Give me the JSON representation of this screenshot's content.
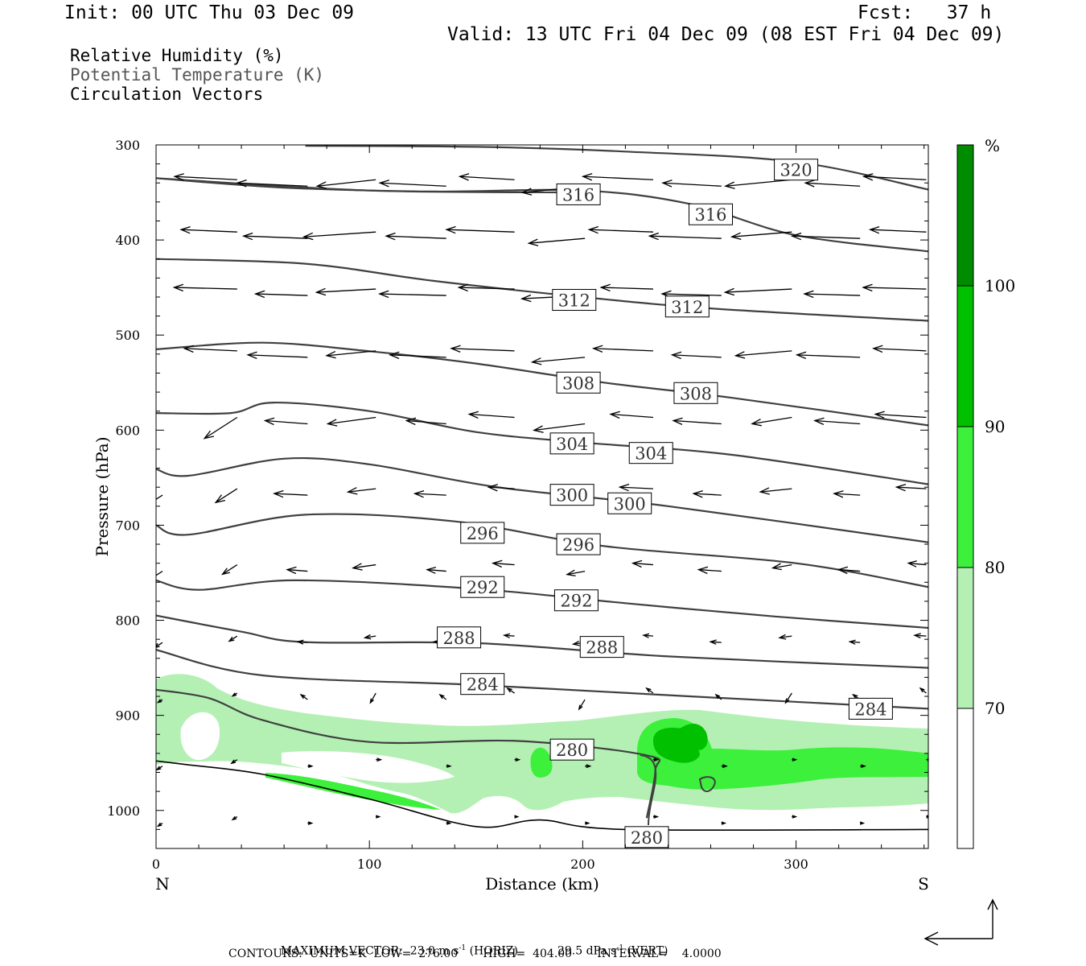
{
  "header": {
    "init": "Init: 00 UTC Thu 03 Dec 09",
    "fcst": "Fcst:   37 h",
    "valid": "Valid: 13 UTC Fri 04 Dec 09 (08 EST Fri 04 Dec 09)"
  },
  "legend": {
    "line1": "Relative Humidity (%)",
    "line2": "Potential Temperature (K)",
    "line3": "Circulation Vectors"
  },
  "footer": {
    "max_vector_label": "MAXIMUM VECTOR:",
    "max_vector_horiz": "23.0 m s",
    "horiz_sup": "-1",
    "horiz_tag": "(HORIZ)",
    "max_vector_vert": "29.5 dPa s",
    "vert_sup": "-1",
    "vert_tag": "(VERT)",
    "contours": "CONTOURS:  UNITS=K  LOW=  276.00       HIGH=  404.00       INTERVAL=    4.0000"
  },
  "colors": {
    "contour": "#404040",
    "rh70": "#b4f0b4",
    "rh80": "#3cf03c",
    "rh90": "#00c000",
    "rh100": "#008c00"
  },
  "chart_data": {
    "type": "cross-section",
    "xlabel": "Distance (km)",
    "ylabel": "Pressure (hPa)",
    "xlim": [
      0,
      362
    ],
    "ylim": [
      1040,
      300
    ],
    "x_ticks": [
      "0",
      "100",
      "200",
      "300"
    ],
    "y_ticks": [
      "300",
      "400",
      "500",
      "600",
      "700",
      "800",
      "900",
      "1000"
    ],
    "x_end_labels": {
      "left": "N",
      "right": "S"
    },
    "colorbar": {
      "unit": "%",
      "levels": [
        "70",
        "80",
        "90",
        "100"
      ]
    },
    "theta_contours": [
      {
        "label": "320",
        "points": [
          [
            70,
            301
          ],
          [
            150,
            302
          ],
          [
            220,
            307
          ],
          [
            300,
            318
          ],
          [
            362,
            347
          ]
        ],
        "label_at": [
          [
            300,
            326
          ]
        ]
      },
      {
        "label": "316",
        "points": [
          [
            0,
            335
          ],
          [
            60,
            345
          ],
          [
            130,
            349
          ],
          [
            200,
            348
          ],
          [
            250,
            362
          ],
          [
            300,
            395
          ],
          [
            362,
            412
          ]
        ],
        "label_at": [
          [
            260,
            373
          ]
        ],
        "note": "first curve"
      },
      {
        "label": "316b",
        "points": [
          [
            0,
            335
          ],
          [
            100,
            348
          ],
          [
            200,
            350
          ]
        ],
        "label_at": [
          [
            198,
            352
          ]
        ],
        "display": "316"
      },
      {
        "label": "312",
        "points": [
          [
            0,
            420
          ],
          [
            70,
            425
          ],
          [
            130,
            443
          ],
          [
            200,
            460
          ],
          [
            260,
            472
          ],
          [
            362,
            485
          ]
        ],
        "label_at": [
          [
            196,
            463
          ],
          [
            249,
            470
          ]
        ]
      },
      {
        "label": "308",
        "points": [
          [
            0,
            515
          ],
          [
            50,
            508
          ],
          [
            100,
            517
          ],
          [
            150,
            530
          ],
          [
            210,
            550
          ],
          [
            270,
            566
          ],
          [
            362,
            595
          ]
        ],
        "label_at": [
          [
            198,
            550
          ],
          [
            253,
            561
          ]
        ]
      },
      {
        "label": "304",
        "points": [
          [
            0,
            582
          ],
          [
            35,
            582
          ],
          [
            55,
            571
          ],
          [
            100,
            580
          ],
          [
            150,
            602
          ],
          [
            200,
            613
          ],
          [
            270,
            626
          ],
          [
            362,
            657
          ]
        ],
        "label_at": [
          [
            195,
            614
          ],
          [
            232,
            624
          ]
        ]
      },
      {
        "label": "300",
        "points": [
          [
            0,
            641
          ],
          [
            15,
            648
          ],
          [
            60,
            630
          ],
          [
            100,
            636
          ],
          [
            160,
            660
          ],
          [
            240,
            680
          ],
          [
            362,
            718
          ]
        ],
        "label_at": [
          [
            195,
            668
          ],
          [
            222,
            677
          ]
        ]
      },
      {
        "label": "296",
        "points": [
          [
            0,
            700
          ],
          [
            15,
            710
          ],
          [
            70,
            689
          ],
          [
            140,
            696
          ],
          [
            210,
            722
          ],
          [
            300,
            740
          ],
          [
            362,
            765
          ]
        ],
        "label_at": [
          [
            153,
            708
          ],
          [
            198,
            720
          ]
        ]
      },
      {
        "label": "292",
        "points": [
          [
            0,
            758
          ],
          [
            20,
            768
          ],
          [
            65,
            758
          ],
          [
            150,
            767
          ],
          [
            220,
            782
          ],
          [
            290,
            796
          ],
          [
            362,
            808
          ]
        ],
        "label_at": [
          [
            153,
            765
          ],
          [
            197,
            779
          ]
        ]
      },
      {
        "label": "288",
        "points": [
          [
            0,
            795
          ],
          [
            40,
            812
          ],
          [
            70,
            823
          ],
          [
            150,
            824
          ],
          [
            240,
            838
          ],
          [
            362,
            850
          ]
        ],
        "label_at": [
          [
            142,
            818
          ],
          [
            209,
            828
          ]
        ]
      },
      {
        "label": "284",
        "points": [
          [
            0,
            831
          ],
          [
            50,
            858
          ],
          [
            150,
            868
          ],
          [
            250,
            880
          ],
          [
            362,
            893
          ]
        ],
        "label_at": [
          [
            153,
            867
          ],
          [
            335,
            893
          ]
        ]
      },
      {
        "label": "280",
        "points": [
          [
            0,
            873
          ],
          [
            25,
            882
          ],
          [
            50,
            905
          ],
          [
            100,
            928
          ],
          [
            170,
            927
          ],
          [
            230,
            942
          ],
          [
            234,
            958
          ],
          [
            230,
            1008
          ]
        ],
        "label_at": [
          [
            195,
            936
          ],
          [
            230,
            1028
          ]
        ]
      }
    ],
    "terrain_line": [
      [
        0,
        948
      ],
      [
        15,
        952
      ],
      [
        50,
        962
      ],
      [
        100,
        988
      ],
      [
        150,
        1017
      ],
      [
        180,
        1010
      ],
      [
        220,
        1020
      ],
      [
        362,
        1020
      ]
    ]
  }
}
